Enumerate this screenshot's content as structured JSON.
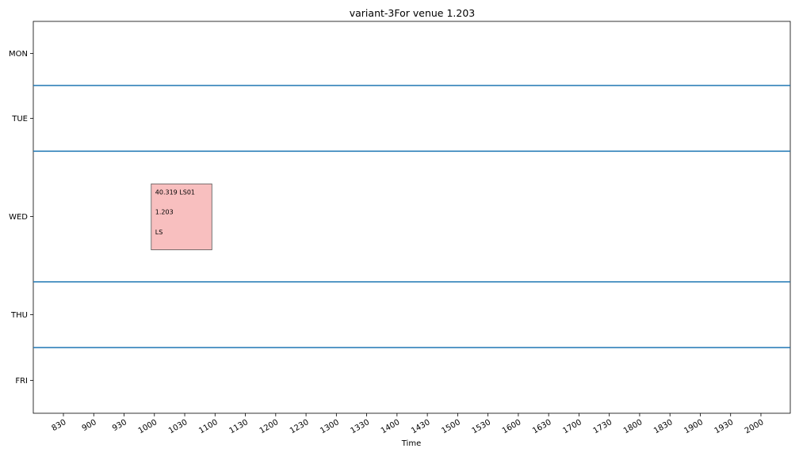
{
  "chart_data": {
    "type": "timetable",
    "title": "variant-3For venue 1.203",
    "xlabel": "Time",
    "ylabel": "",
    "x_ticks": [
      "830",
      "900",
      "930",
      "1000",
      "1030",
      "1100",
      "1130",
      "1200",
      "1230",
      "1300",
      "1330",
      "1400",
      "1430",
      "1500",
      "1530",
      "1600",
      "1630",
      "1700",
      "1730",
      "1800",
      "1830",
      "1900",
      "1930",
      "2000"
    ],
    "y_categories": [
      "MON",
      "TUE",
      "WED",
      "THU",
      "FRI"
    ],
    "day_separator_color": "#1f77b4",
    "events": [
      {
        "day": "WED",
        "start": "1000",
        "end": "1100",
        "lines": [
          "40.319 LS01",
          "1.203",
          "LS"
        ],
        "color": "#f8bfbf"
      }
    ]
  }
}
